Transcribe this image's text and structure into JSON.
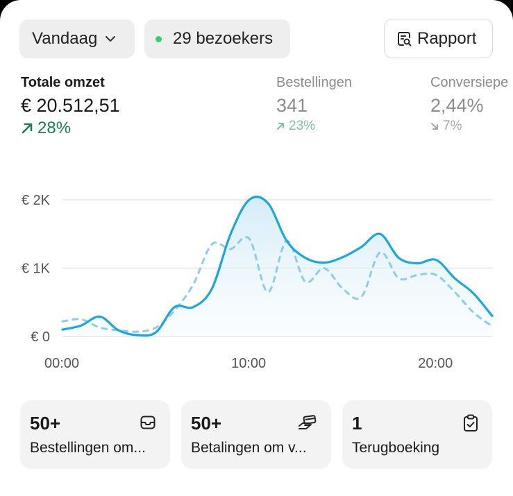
{
  "header": {
    "date_filter": "Vandaag",
    "visitors": "29 bezoekers",
    "report_button": "Rapport"
  },
  "metrics": [
    {
      "label": "Totale omzet",
      "value": "€ 20.512,51",
      "change": "28%",
      "direction": "up"
    },
    {
      "label": "Bestellingen",
      "value": "341",
      "change": "23%",
      "direction": "up"
    },
    {
      "label": "Conversiepe",
      "value": "2,44%",
      "change": "7%",
      "direction": "down"
    }
  ],
  "chart_data": {
    "type": "line",
    "y_ticks": [
      "€ 2K",
      "€ 1K",
      "€ 0"
    ],
    "x_ticks": [
      "00:00",
      "10:00",
      "20:00"
    ],
    "ylim": [
      0,
      2000
    ],
    "x_unit": "hour",
    "series": [
      {
        "style": "solid",
        "color": "#1aa6df",
        "points": [
          [
            0,
            100
          ],
          [
            1,
            160
          ],
          [
            2,
            290
          ],
          [
            3,
            90
          ],
          [
            4,
            20
          ],
          [
            5,
            60
          ],
          [
            6,
            430
          ],
          [
            7,
            430
          ],
          [
            8,
            700
          ],
          [
            9,
            1500
          ],
          [
            10,
            2000
          ],
          [
            11,
            1950
          ],
          [
            12,
            1400
          ],
          [
            13,
            1150
          ],
          [
            14,
            1080
          ],
          [
            15,
            1160
          ],
          [
            16,
            1310
          ],
          [
            17,
            1500
          ],
          [
            18,
            1150
          ],
          [
            19,
            1070
          ],
          [
            20,
            1120
          ],
          [
            21,
            850
          ],
          [
            22,
            630
          ],
          [
            23,
            300
          ]
        ]
      },
      {
        "style": "dashed",
        "color": "#8ccde9",
        "points": [
          [
            0,
            220
          ],
          [
            1,
            250
          ],
          [
            2,
            130
          ],
          [
            3,
            90
          ],
          [
            4,
            70
          ],
          [
            5,
            130
          ],
          [
            6,
            380
          ],
          [
            7,
            760
          ],
          [
            8,
            1350
          ],
          [
            9,
            1280
          ],
          [
            10,
            1430
          ],
          [
            11,
            650
          ],
          [
            12,
            1400
          ],
          [
            13,
            800
          ],
          [
            14,
            1000
          ],
          [
            15,
            700
          ],
          [
            16,
            580
          ],
          [
            17,
            1230
          ],
          [
            18,
            850
          ],
          [
            19,
            900
          ],
          [
            20,
            900
          ],
          [
            21,
            650
          ],
          [
            22,
            350
          ],
          [
            23,
            150
          ]
        ]
      }
    ]
  },
  "tiles": [
    {
      "count": "50+",
      "label": "Bestellingen om...",
      "icon": "inbox-icon"
    },
    {
      "count": "50+",
      "label": "Betalingen om v...",
      "icon": "hand-card-icon"
    },
    {
      "count": "1",
      "label": "Terugboeking",
      "icon": "clipboard-check-icon"
    }
  ]
}
